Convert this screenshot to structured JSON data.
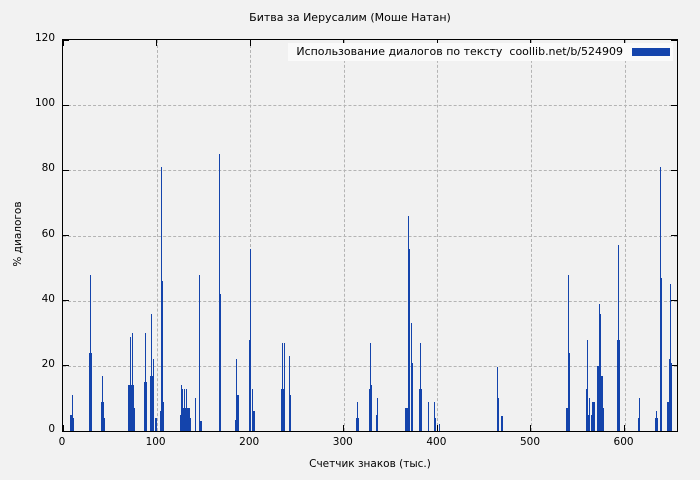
{
  "chart_data": {
    "type": "bar",
    "title": "Битва за Иерусалим (Моше Натан)",
    "xlabel": "Счетчик знаков (тыс.)",
    "ylabel": "% диалогов",
    "legend": {
      "label": "Использование диалогов по тексту  coollib.net/b/524909",
      "position": "top-right-inside"
    },
    "xlim": [
      0,
      656
    ],
    "ylim": [
      0,
      120
    ],
    "x_ticks": [
      0,
      100,
      200,
      300,
      400,
      500,
      600
    ],
    "y_ticks": [
      0,
      20,
      40,
      60,
      80,
      100,
      120
    ],
    "grid": true,
    "background": "#f2f2f2",
    "bar_color": "#1444ac",
    "bars_format": "[x_thousand_chars, percent_dialogs, bar_width_in_x_units]",
    "bars": [
      [
        9.0,
        5,
        2.5
      ],
      [
        9.8,
        11,
        1
      ],
      [
        10.7,
        4,
        1.5
      ],
      [
        28.6,
        24,
        1.2
      ],
      [
        29.2,
        48,
        1
      ],
      [
        29.9,
        24,
        2.2
      ],
      [
        30.9,
        5,
        1
      ],
      [
        41.4,
        9,
        2
      ],
      [
        42.2,
        17,
        1
      ],
      [
        43.1,
        9,
        2
      ],
      [
        44.2,
        4,
        1
      ],
      [
        70.8,
        14,
        2.5
      ],
      [
        72.0,
        29,
        1
      ],
      [
        73.0,
        14,
        2
      ],
      [
        74.2,
        30,
        1
      ],
      [
        75.1,
        14,
        1.5
      ],
      [
        76.1,
        7,
        2
      ],
      [
        87.3,
        15,
        2
      ],
      [
        88.2,
        30,
        1
      ],
      [
        89.1,
        15,
        1.5
      ],
      [
        93.7,
        17,
        2
      ],
      [
        94.6,
        36,
        1
      ],
      [
        95.6,
        17,
        1.5
      ],
      [
        96.4,
        22,
        1
      ],
      [
        99.8,
        4,
        1.8
      ],
      [
        104.1,
        6,
        1.2
      ],
      [
        105.0,
        81,
        1.2
      ],
      [
        106.0,
        46,
        1.5
      ],
      [
        107.1,
        9,
        1.5
      ],
      [
        125.4,
        5,
        1.5
      ],
      [
        126.3,
        14,
        1
      ],
      [
        127.2,
        7,
        1.5
      ],
      [
        128.2,
        13,
        1
      ],
      [
        129.1,
        7,
        1.5
      ],
      [
        130.2,
        13,
        1
      ],
      [
        131.1,
        7,
        1.5
      ],
      [
        132.2,
        13,
        1
      ],
      [
        133.3,
        7,
        1.8
      ],
      [
        134.8,
        7,
        1.8
      ],
      [
        136.2,
        4,
        1.2
      ],
      [
        141.3,
        6,
        1.5
      ],
      [
        141.9,
        10,
        1
      ],
      [
        145.6,
        24,
        1.5
      ],
      [
        146.2,
        48,
        1
      ],
      [
        147.4,
        3,
        1.8
      ],
      [
        166.8,
        85,
        1.2
      ],
      [
        167.7,
        42,
        2
      ],
      [
        184.8,
        3.5,
        1.8
      ],
      [
        185.8,
        22,
        1
      ],
      [
        186.6,
        11,
        1.8
      ],
      [
        199.8,
        28,
        1.8
      ],
      [
        200.4,
        56,
        1.2
      ],
      [
        202.9,
        13,
        1
      ],
      [
        203.6,
        6,
        1.8
      ],
      [
        233.8,
        13,
        2.5
      ],
      [
        234.5,
        27,
        1
      ],
      [
        235.3,
        13,
        1.5
      ],
      [
        236.2,
        27,
        1.2
      ],
      [
        241.8,
        23,
        1
      ],
      [
        242.7,
        11,
        2
      ],
      [
        314.1,
        4,
        1.2
      ],
      [
        314.8,
        9,
        1
      ],
      [
        315.6,
        4,
        1.2
      ],
      [
        327.6,
        13,
        1.5
      ],
      [
        328.3,
        27,
        1
      ],
      [
        329.2,
        14,
        1.5
      ],
      [
        335.3,
        5,
        1.5
      ],
      [
        336.2,
        10,
        1
      ],
      [
        366.9,
        7,
        2
      ],
      [
        368.4,
        7,
        1.5
      ],
      [
        369.3,
        66,
        1.2
      ],
      [
        370.2,
        56,
        1.2
      ],
      [
        371.9,
        33,
        1
      ],
      [
        372.7,
        16,
        1.2
      ],
      [
        373.7,
        21,
        1
      ],
      [
        381.3,
        13,
        1.2
      ],
      [
        382.0,
        27,
        1
      ],
      [
        382.9,
        13,
        1.2
      ],
      [
        390.0,
        5,
        1.2
      ],
      [
        390.7,
        9,
        1
      ],
      [
        397.3,
        9,
        1
      ],
      [
        398.2,
        4,
        1.5
      ],
      [
        402.7,
        2,
        1.2
      ],
      [
        463.8,
        10,
        1.5
      ],
      [
        464.5,
        19.5,
        1
      ],
      [
        465.5,
        10,
        1.2
      ],
      [
        468.9,
        4.5,
        2
      ],
      [
        538.6,
        7,
        2
      ],
      [
        539.6,
        14,
        1.2
      ],
      [
        540.2,
        48,
        1
      ],
      [
        541.1,
        24,
        2
      ],
      [
        559.6,
        13,
        1.5
      ],
      [
        560.3,
        28,
        1
      ],
      [
        561.5,
        5,
        1.2
      ],
      [
        562.1,
        10,
        1
      ],
      [
        564.7,
        5,
        1.5
      ],
      [
        565.4,
        9,
        1
      ],
      [
        567.0,
        9,
        1.8
      ],
      [
        572.0,
        20,
        1.8
      ],
      [
        572.8,
        39,
        1
      ],
      [
        574.4,
        36,
        1
      ],
      [
        575.4,
        17,
        1.8
      ],
      [
        576.7,
        7,
        2
      ],
      [
        592.6,
        28,
        1.5
      ],
      [
        593.2,
        57,
        1.2
      ],
      [
        594.1,
        28,
        1.5
      ],
      [
        615.2,
        4,
        1.5
      ],
      [
        615.9,
        10,
        1
      ],
      [
        633.0,
        4,
        1.5
      ],
      [
        634.0,
        6,
        1
      ],
      [
        635.0,
        4,
        1.2
      ],
      [
        638.5,
        81,
        1.2
      ],
      [
        639.4,
        47,
        1.5
      ],
      [
        646.6,
        9,
        2
      ],
      [
        648.4,
        22,
        1.5
      ],
      [
        649.2,
        45,
        1
      ],
      [
        650.1,
        21,
        1.5
      ]
    ]
  }
}
